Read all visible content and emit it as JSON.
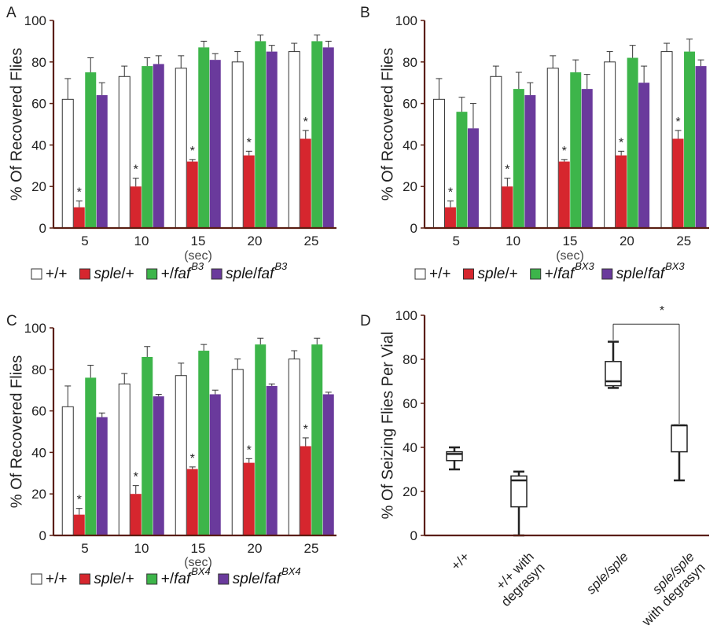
{
  "colors": {
    "wt": "#ffffff",
    "sple": "#d6262e",
    "faf": "#3db54a",
    "double": "#6a3a9c",
    "axis": "#5a1e12"
  },
  "chart_data": [
    {
      "panel": "A",
      "type": "bar",
      "ylabel": "% Of Recovered Flies",
      "xunit": "(sec)",
      "ylim": [
        0,
        100
      ],
      "yticks": [
        "0",
        "20",
        "40",
        "60",
        "80",
        "100"
      ],
      "categories": [
        "5",
        "10",
        "15",
        "20",
        "25"
      ],
      "significance": [
        true,
        true,
        true,
        true,
        true
      ],
      "legend_sup": "B3",
      "series": [
        {
          "values": [
            62,
            73,
            77,
            80,
            85
          ],
          "err": [
            10,
            5,
            6,
            5,
            4
          ]
        },
        {
          "values": [
            10,
            20,
            32,
            35,
            43
          ],
          "err": [
            3,
            4,
            1,
            2,
            4
          ]
        },
        {
          "values": [
            75,
            78,
            87,
            90,
            90
          ],
          "err": [
            7,
            4,
            3,
            3,
            3
          ]
        },
        {
          "values": [
            64,
            79,
            81,
            85,
            87
          ],
          "err": [
            6,
            4,
            3,
            3,
            3
          ]
        }
      ]
    },
    {
      "panel": "B",
      "type": "bar",
      "ylabel": "% Of Recovered Flies",
      "xunit": "(sec)",
      "ylim": [
        0,
        100
      ],
      "yticks": [
        "0",
        "20",
        "40",
        "60",
        "80",
        "100"
      ],
      "categories": [
        "5",
        "10",
        "15",
        "20",
        "25"
      ],
      "significance": [
        true,
        true,
        true,
        true,
        true
      ],
      "legend_sup": "BX3",
      "series": [
        {
          "values": [
            62,
            73,
            77,
            80,
            85
          ],
          "err": [
            10,
            5,
            6,
            5,
            4
          ]
        },
        {
          "values": [
            10,
            20,
            32,
            35,
            43
          ],
          "err": [
            3,
            4,
            1,
            2,
            4
          ]
        },
        {
          "values": [
            56,
            67,
            75,
            82,
            85
          ],
          "err": [
            7,
            8,
            6,
            6,
            6
          ]
        },
        {
          "values": [
            48,
            64,
            67,
            70,
            78
          ],
          "err": [
            12,
            6,
            7,
            8,
            3
          ]
        }
      ]
    },
    {
      "panel": "C",
      "type": "bar",
      "ylabel": "% Of Recovered Flies",
      "xunit": "(sec)",
      "ylim": [
        0,
        100
      ],
      "yticks": [
        "0",
        "20",
        "40",
        "60",
        "80",
        "100"
      ],
      "categories": [
        "5",
        "10",
        "15",
        "20",
        "25"
      ],
      "significance": [
        true,
        true,
        true,
        true,
        true
      ],
      "legend_sup": "BX4",
      "series": [
        {
          "values": [
            62,
            73,
            77,
            80,
            85
          ],
          "err": [
            10,
            5,
            6,
            5,
            4
          ]
        },
        {
          "values": [
            10,
            20,
            32,
            35,
            43
          ],
          "err": [
            3,
            4,
            1,
            2,
            4
          ]
        },
        {
          "values": [
            76,
            86,
            89,
            92,
            92
          ],
          "err": [
            6,
            5,
            3,
            3,
            3
          ]
        },
        {
          "values": [
            57,
            67,
            68,
            72,
            68
          ],
          "err": [
            2,
            1,
            2,
            1,
            1
          ]
        }
      ]
    },
    {
      "panel": "D",
      "type": "box",
      "ylabel": "% Of Seizing Flies Per Vial",
      "ylim": [
        0,
        100
      ],
      "yticks": [
        "0",
        "20",
        "40",
        "60",
        "80",
        "100"
      ],
      "categories": [
        "+/+",
        "+/+ with degrasyn",
        "sple/sple",
        "sple/sple with degrasyn"
      ],
      "boxes": [
        {
          "min": 30,
          "q1": 34,
          "median": 37,
          "q3": 38,
          "max": 40
        },
        {
          "min": 0,
          "q1": 13,
          "median": 25,
          "q3": 27,
          "max": 29
        },
        {
          "min": 67,
          "q1": 68,
          "median": 70,
          "q3": 79,
          "max": 88
        },
        {
          "min": 25,
          "q1": 38,
          "median": 50,
          "q3": 50,
          "max": 50
        }
      ],
      "significance_bracket": {
        "from": 2,
        "to": 3,
        "label": "*"
      }
    }
  ],
  "legend": {
    "wt": "+/+",
    "sple": "sple",
    "sple_suffix": "/+",
    "faf_prefix": "+/",
    "faf": "faf",
    "double_prefix": "sple",
    "double_mid": "/",
    "double": "faf"
  },
  "xlabels_d": [
    [
      "+/+"
    ],
    [
      "+/+ with",
      "degrasyn"
    ],
    [
      "sple/sple"
    ],
    [
      "sple/sple",
      "with degrasyn"
    ]
  ]
}
